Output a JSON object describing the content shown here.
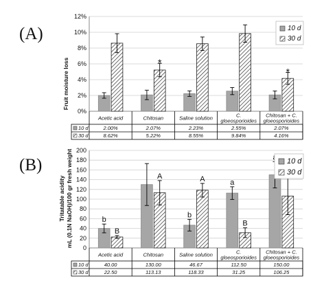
{
  "chart_data": [
    {
      "panel_label": "(A)",
      "type": "bar",
      "ylabel": "Fruit moisture loss",
      "ylim": [
        0,
        12
      ],
      "yticks": [
        "0%",
        "2%",
        "4%",
        "6%",
        "8%",
        "10%",
        "12%"
      ],
      "categories": [
        "Acetic acid",
        "Chitosan",
        "Saline solution",
        "C. gloeosporioides",
        "Chitosan + C. gloeosporioides"
      ],
      "legend": "top-right",
      "series": [
        {
          "name": "10 d",
          "color": "#a6a6a6",
          "pattern": "solid",
          "values": [
            2.0,
            2.07,
            2.23,
            2.55,
            2.07
          ],
          "errors": [
            0.35,
            0.6,
            0.35,
            0.45,
            0.5
          ],
          "table": [
            "2.00%",
            "2.07%",
            "2.23%",
            "2.55%",
            "2.07%"
          ],
          "annotations": [
            "",
            "",
            "",
            "",
            ""
          ]
        },
        {
          "name": "30 d",
          "color": "#ffffff",
          "pattern": "hatch",
          "values": [
            8.62,
            5.22,
            8.55,
            9.84,
            4.16
          ],
          "errors": [
            1.2,
            0.85,
            0.85,
            1.1,
            0.75
          ],
          "table": [
            "8.62%",
            "5.22%",
            "8.55%",
            "9.84%",
            "4.16%"
          ],
          "annotations": [
            "",
            "*",
            "",
            "",
            "*"
          ]
        }
      ]
    },
    {
      "panel_label": "(B)",
      "type": "bar",
      "ylabel_line1": "Tritatable acidity",
      "ylabel_line2": "mL (0.1N NaOH)/100 gr fresh weight",
      "ylim": [
        0,
        200
      ],
      "yticks": [
        "0",
        "20",
        "40",
        "60",
        "80",
        "100",
        "120",
        "140",
        "160",
        "180",
        "200"
      ],
      "categories": [
        "Acetic acid",
        "Chitosan",
        "Saline solution",
        "C. gloeosporioides",
        "Chitosan + C. gloeosporioides"
      ],
      "legend": "top-right",
      "series": [
        {
          "name": "10 d",
          "color": "#a6a6a6",
          "pattern": "solid",
          "values": [
            40.0,
            130.0,
            46.67,
            112.5,
            150.0
          ],
          "errors": [
            9,
            43,
            12,
            13,
            27
          ],
          "table": [
            "40.00",
            "130.00",
            "46.67",
            "112.50",
            "150.00"
          ],
          "annotations": [
            "b",
            "",
            "b",
            "a",
            "a"
          ]
        },
        {
          "name": "30 d",
          "color": "#ffffff",
          "pattern": "hatch",
          "values": [
            22.5,
            113.13,
            118.33,
            31.25,
            106.25
          ],
          "errors": [
            3,
            25,
            14,
            10,
            38
          ],
          "table": [
            "22.50",
            "113.13",
            "118.33",
            "31.25",
            "106.25"
          ],
          "annotations": [
            "B",
            "A",
            "A",
            "B",
            "A"
          ]
        }
      ]
    }
  ]
}
